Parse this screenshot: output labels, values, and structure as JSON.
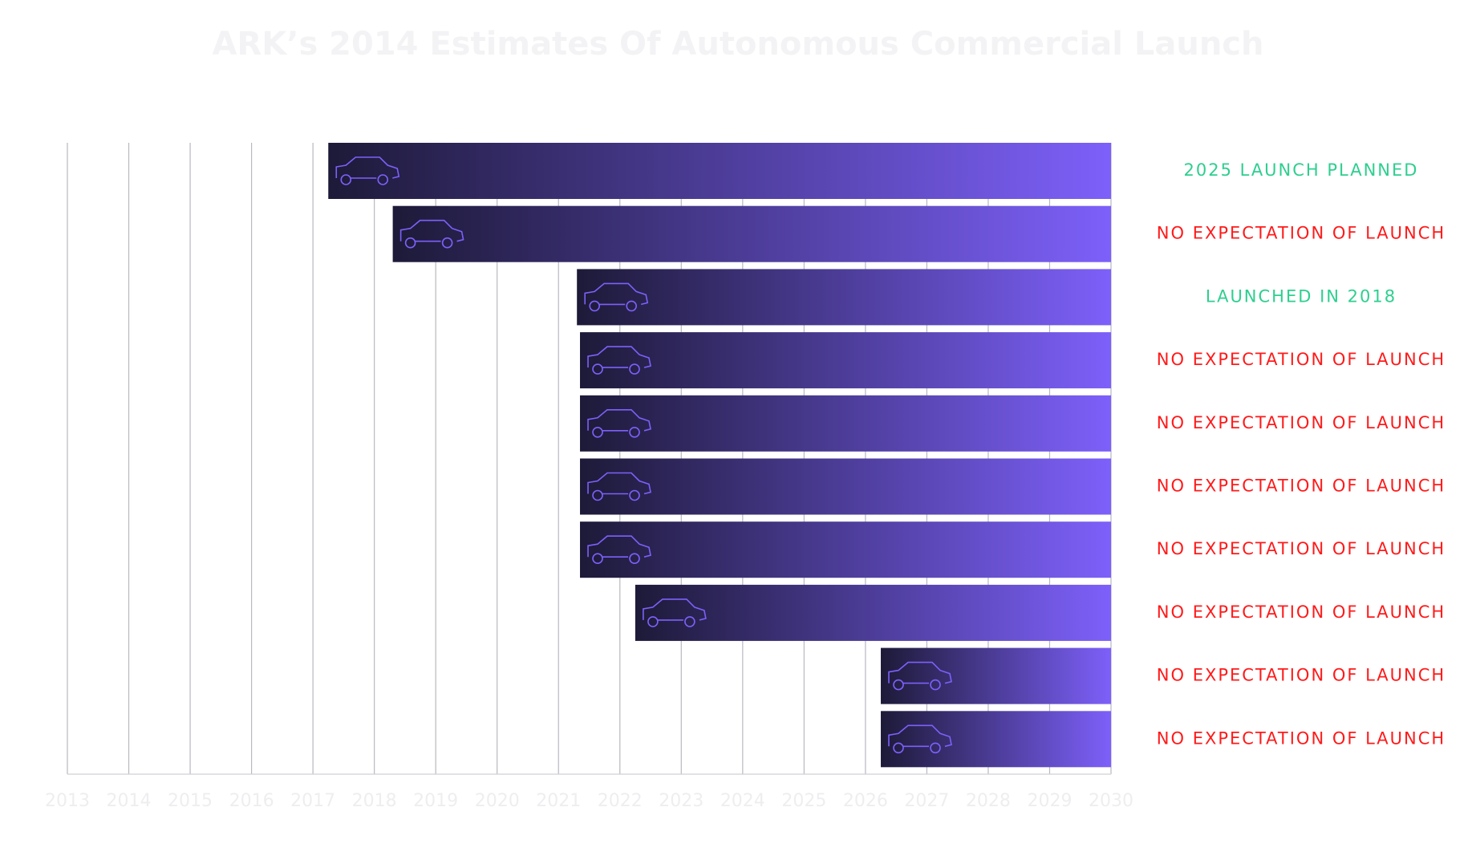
{
  "chart_data": {
    "type": "range-bar",
    "title": "ARK’s 2014 Estimates Of Autonomous Commercial Launch",
    "values": [
      2017.25,
      2018.3,
      2021.3,
      2021.35,
      2021.35,
      2021.35,
      2021.35,
      2022.25,
      2026.25,
      2026.25
    ],
    "annotations": [
      {
        "text": "2025 LAUNCH PLANNED",
        "color": "#2ecf8f"
      },
      {
        "text": "NO EXPECTATION OF LAUNCH",
        "color": "#ff1a1a"
      },
      {
        "text": "LAUNCHED IN 2018",
        "color": "#2ecf8f"
      },
      {
        "text": "NO EXPECTATION OF LAUNCH",
        "color": "#ff1a1a"
      },
      {
        "text": "NO EXPECTATION OF LAUNCH",
        "color": "#ff1a1a"
      },
      {
        "text": "NO EXPECTATION OF LAUNCH",
        "color": "#ff1a1a"
      },
      {
        "text": "NO EXPECTATION OF LAUNCH",
        "color": "#ff1a1a"
      },
      {
        "text": "NO EXPECTATION OF LAUNCH",
        "color": "#ff1a1a"
      },
      {
        "text": "NO EXPECTATION OF LAUNCH",
        "color": "#ff1a1a"
      },
      {
        "text": "NO EXPECTATION OF LAUNCH",
        "color": "#ff1a1a"
      }
    ],
    "gradient": [
      "#1d1a38",
      "#7d60fa"
    ],
    "xlim": [
      2013,
      2030
    ],
    "xticks": [
      2013,
      2014,
      2015,
      2016,
      2017,
      2018,
      2019,
      2020,
      2021,
      2022,
      2023,
      2024,
      2025,
      2026,
      2027,
      2028,
      2029,
      2030
    ],
    "grid": true
  }
}
